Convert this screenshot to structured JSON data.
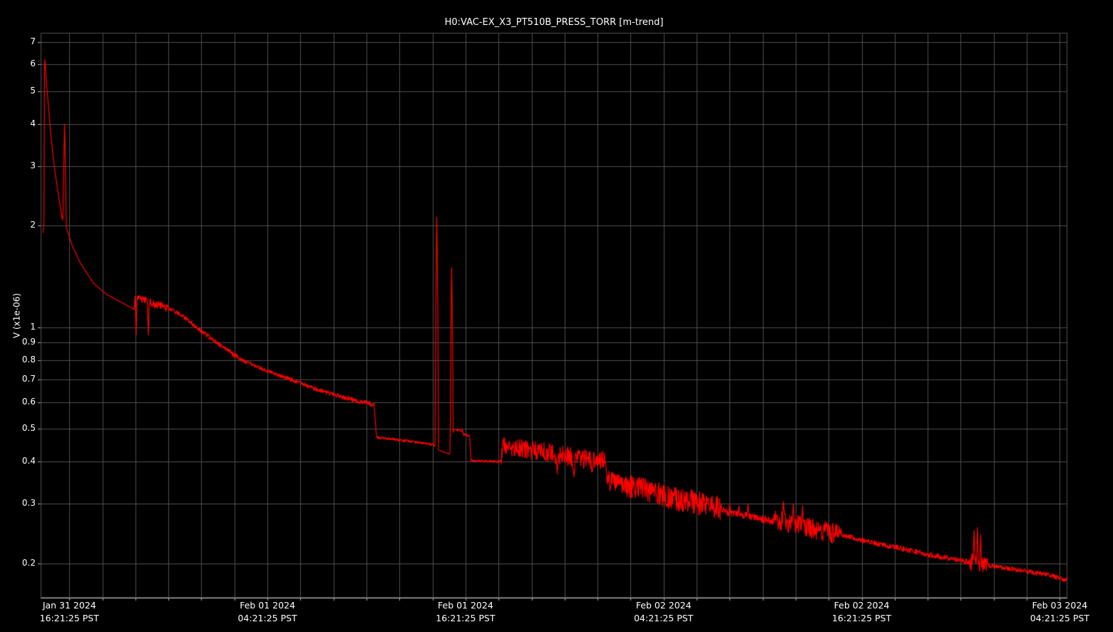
{
  "window": {
    "background_color": "#000000"
  },
  "chart_data": {
    "type": "line",
    "title": "H0:VAC-EX_X3_PT510B_PRESS_TORR [m-trend]",
    "ylabel": "V (x1e-06)",
    "xlabel": "",
    "yscale": "log",
    "ylim": [
      0.158,
      7.45
    ],
    "xlim": [
      0,
      62.2
    ],
    "x_unit": "hours_from_plot_left_edge",
    "grid": true,
    "legend": null,
    "line_color": "#ff0000",
    "grid_color": "#4f4f4f",
    "axis_color": "#b0b0b0",
    "text_color": "#ffffff",
    "minor_xtick_interval_hours": 2,
    "yticks": [
      {
        "v": 7,
        "label": "7"
      },
      {
        "v": 6,
        "label": "6"
      },
      {
        "v": 5,
        "label": "5"
      },
      {
        "v": 4,
        "label": "4"
      },
      {
        "v": 3,
        "label": "3"
      },
      {
        "v": 2,
        "label": "2"
      },
      {
        "v": 1,
        "label": "1"
      },
      {
        "v": 0.9,
        "label": "0.9"
      },
      {
        "v": 0.8,
        "label": "0.8"
      },
      {
        "v": 0.7,
        "label": "0.7"
      },
      {
        "v": 0.6,
        "label": "0.6"
      },
      {
        "v": 0.5,
        "label": "0.5"
      },
      {
        "v": 0.4,
        "label": "0.4"
      },
      {
        "v": 0.3,
        "label": "0.3"
      },
      {
        "v": 0.2,
        "label": "0.2"
      }
    ],
    "xticks": [
      {
        "u": 1.74,
        "date": "Jan 31 2024",
        "time": "16:21:25 PST"
      },
      {
        "u": 13.74,
        "date": "Feb 01 2024",
        "time": "04:21:25 PST"
      },
      {
        "u": 25.74,
        "date": "Feb 01 2024",
        "time": "16:21:25 PST"
      },
      {
        "u": 37.74,
        "date": "Feb 02 2024",
        "time": "04:21:25 PST"
      },
      {
        "u": 49.74,
        "date": "Feb 02 2024",
        "time": "16:21:25 PST"
      },
      {
        "u": 61.74,
        "date": "Feb 03 2024",
        "time": "04:21:25 PST"
      }
    ],
    "backbone": [
      [
        0.15,
        1.9
      ],
      [
        0.2,
        2.0
      ],
      [
        0.24,
        6.4
      ],
      [
        0.38,
        5.1
      ],
      [
        0.58,
        3.9
      ],
      [
        0.82,
        3.0
      ],
      [
        1.06,
        2.5
      ],
      [
        1.3,
        2.1
      ],
      [
        1.6,
        1.95
      ],
      [
        1.9,
        1.75
      ],
      [
        2.4,
        1.55
      ],
      [
        3.2,
        1.35
      ],
      [
        4.0,
        1.25
      ],
      [
        5.1,
        1.17
      ],
      [
        5.66,
        1.13
      ],
      [
        5.72,
        1.23
      ],
      [
        6.3,
        1.2
      ],
      [
        7.0,
        1.17
      ],
      [
        7.9,
        1.13
      ],
      [
        8.6,
        1.08
      ],
      [
        9.4,
        1.0
      ],
      [
        10.7,
        0.9
      ],
      [
        11.4,
        0.85
      ],
      [
        12.2,
        0.8
      ],
      [
        13.5,
        0.75
      ],
      [
        14.4,
        0.72
      ],
      [
        15.2,
        0.7
      ],
      [
        16.5,
        0.66
      ],
      [
        17.8,
        0.63
      ],
      [
        18.9,
        0.61
      ],
      [
        20.2,
        0.59
      ],
      [
        20.35,
        0.472
      ],
      [
        21.5,
        0.465
      ],
      [
        23.0,
        0.455
      ],
      [
        23.85,
        0.448
      ],
      [
        24.15,
        0.432
      ],
      [
        24.5,
        0.425
      ],
      [
        24.78,
        0.422
      ],
      [
        25.05,
        0.5
      ],
      [
        25.55,
        0.495
      ],
      [
        25.62,
        0.48
      ],
      [
        25.98,
        0.478
      ],
      [
        26.08,
        0.402
      ],
      [
        27.85,
        0.4
      ],
      [
        28.0,
        0.445
      ],
      [
        30.0,
        0.432
      ],
      [
        32.0,
        0.415
      ],
      [
        34.2,
        0.402
      ],
      [
        34.35,
        0.35
      ],
      [
        36.5,
        0.332
      ],
      [
        38.5,
        0.312
      ],
      [
        41.2,
        0.293
      ],
      [
        41.5,
        0.284
      ],
      [
        44.4,
        0.266
      ],
      [
        44.6,
        0.27
      ],
      [
        46.5,
        0.255
      ],
      [
        48.5,
        0.243
      ],
      [
        50.0,
        0.232
      ],
      [
        52.0,
        0.222
      ],
      [
        54.0,
        0.211
      ],
      [
        56.3,
        0.202
      ],
      [
        57.4,
        0.197
      ],
      [
        59.0,
        0.192
      ],
      [
        61.0,
        0.185
      ],
      [
        62.2,
        0.178
      ]
    ],
    "noise_regions": [
      [
        5.7,
        7.9,
        0.03
      ],
      [
        7.9,
        12.0,
        0.015
      ],
      [
        12.0,
        20.2,
        0.01
      ],
      [
        20.35,
        23.9,
        0.004
      ],
      [
        25.2,
        26.0,
        0.005
      ],
      [
        26.1,
        27.9,
        0.003
      ],
      [
        27.9,
        34.2,
        0.028
      ],
      [
        34.3,
        41.2,
        0.026
      ],
      [
        41.2,
        44.4,
        0.007
      ],
      [
        44.4,
        48.5,
        0.018
      ],
      [
        48.5,
        56.3,
        0.004
      ],
      [
        56.3,
        57.4,
        0.012
      ],
      [
        57.4,
        62.2,
        0.003
      ]
    ],
    "spikes": [
      [
        1.45,
        4.0,
        0.1
      ],
      [
        5.78,
        0.95,
        0.06
      ],
      [
        6.52,
        0.95,
        0.06
      ],
      [
        24.0,
        2.12,
        0.1
      ],
      [
        24.9,
        1.5,
        0.09
      ],
      [
        31.3,
        0.368,
        0.1
      ],
      [
        32.3,
        0.36,
        0.12
      ],
      [
        33.4,
        0.372,
        0.1
      ],
      [
        41.75,
        0.3,
        0.06
      ],
      [
        42.3,
        0.296,
        0.06
      ],
      [
        42.85,
        0.3,
        0.05
      ],
      [
        45.0,
        0.305,
        0.07
      ],
      [
        45.6,
        0.3,
        0.07
      ],
      [
        46.15,
        0.296,
        0.06
      ],
      [
        56.55,
        0.25,
        0.06
      ],
      [
        56.75,
        0.255,
        0.06
      ],
      [
        56.95,
        0.243,
        0.05
      ],
      [
        61.0,
        0.186,
        0.05
      ]
    ]
  }
}
